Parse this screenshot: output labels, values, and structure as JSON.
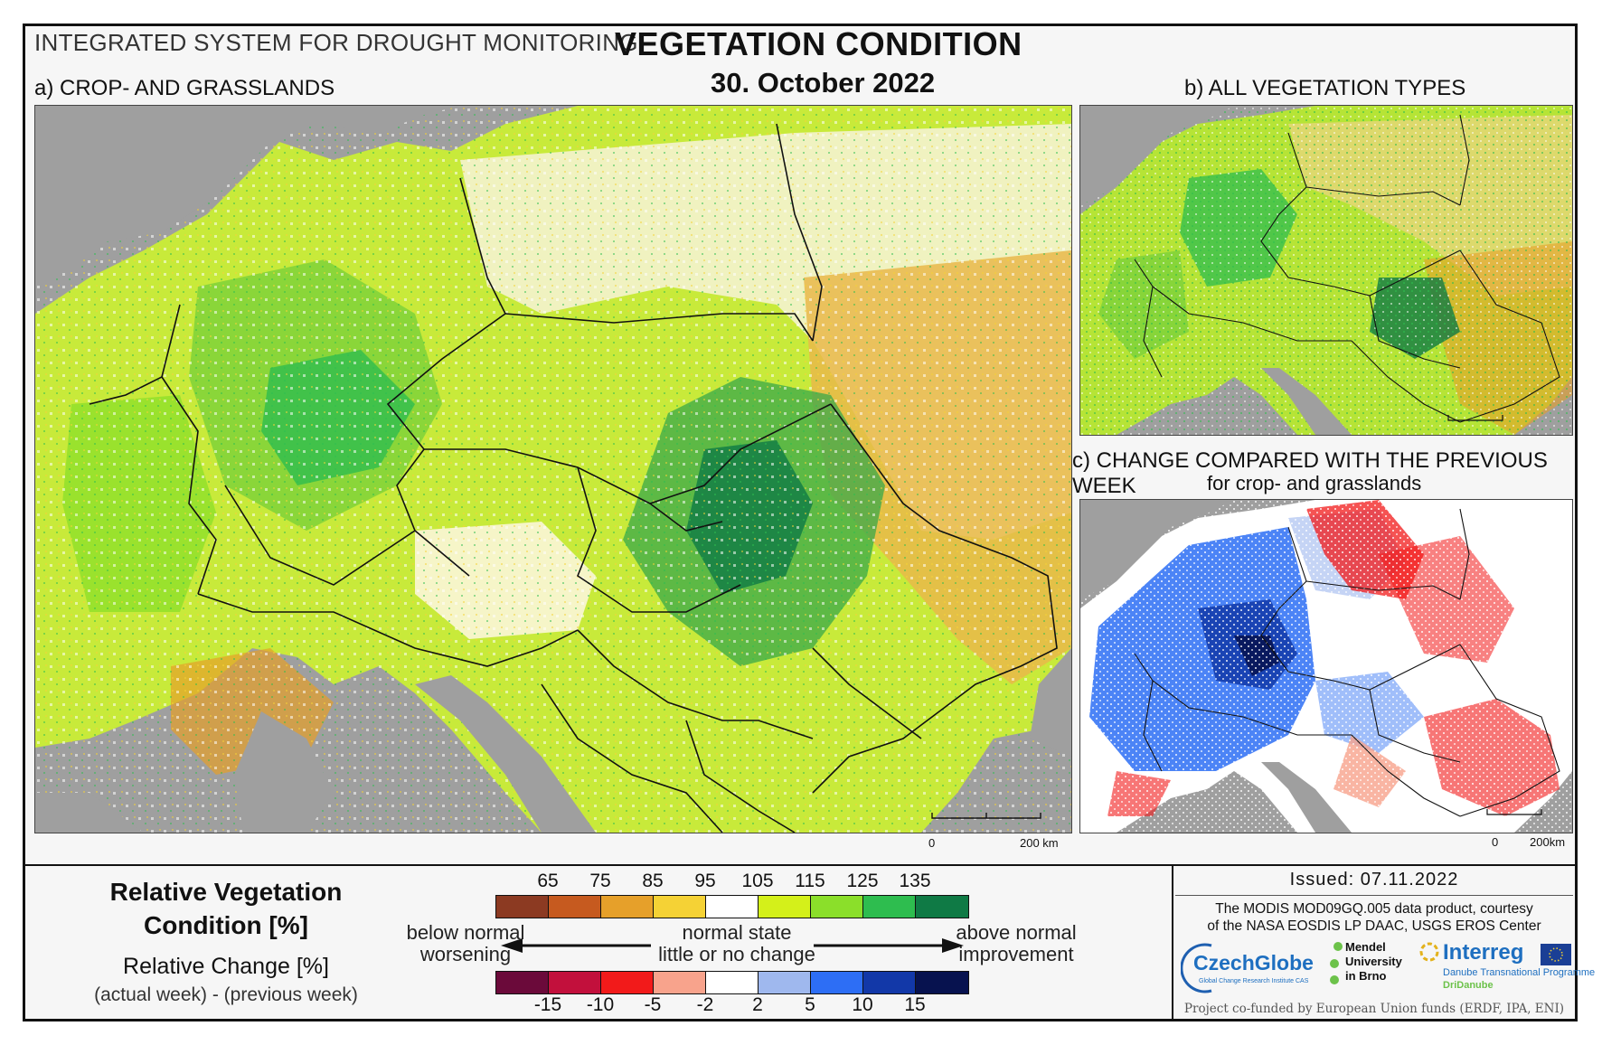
{
  "header": {
    "system_title": "INTEGRATED SYSTEM FOR DROUGHT MONITORING",
    "main_title": "VEGETATION CONDITION",
    "date": "30. October 2022"
  },
  "sections": {
    "a": "a) CROP- AND GRASSLANDS",
    "b": "b) ALL VEGETATION TYPES",
    "c": "c) CHANGE COMPARED WITH THE PREVIOUS WEEK",
    "c_sub": "for crop- and grasslands"
  },
  "scalebars": {
    "a": {
      "zero": "0",
      "end": "200 km"
    },
    "c": {
      "zero": "0",
      "end": "200km"
    }
  },
  "legend": {
    "title_line1": "Relative Vegetation",
    "title_line2": "Condition [%]",
    "change_title": "Relative Change [%]",
    "change_formula": "(actual week) - (previous week)",
    "condition_ticks": [
      "65",
      "75",
      "85",
      "95",
      "105",
      "115",
      "125",
      "135"
    ],
    "condition_colors": [
      "#8c3a22",
      "#c65a1f",
      "#e6a02a",
      "#f5d235",
      "#ffffff",
      "#d4f01a",
      "#8bdf2a",
      "#2ebd4f",
      "#0f7a45"
    ],
    "change_ticks": [
      "-15",
      "-10",
      "-5",
      "-2",
      "2",
      "5",
      "10",
      "15"
    ],
    "change_colors": [
      "#6b0a3a",
      "#c2103c",
      "#f21a1a",
      "#f8a38c",
      "#ffffff",
      "#9fb8ee",
      "#2d6ef5",
      "#1238a8",
      "#07124f"
    ],
    "below_normal": "below normal",
    "worsening": "worsening",
    "normal_state": "normal state",
    "little_change": "little or no change",
    "above_normal": "above normal",
    "improvement": "improvement"
  },
  "footer": {
    "issued": "Issued: 07.11.2022",
    "credit_line1": "The MODIS MOD09GQ.005 data product, courtesy",
    "credit_line2": "of the NASA EOSDIS LP DAAC, USGS EROS Center",
    "czechglobe": "CzechGlobe",
    "czechglobe_sub": "Global Change Research Institute CAS",
    "mendel_1": "Mendel",
    "mendel_2": "University",
    "mendel_3": "in Brno",
    "interreg": "Interreg",
    "interreg_sub1": "Danube Transnational Programme",
    "interreg_sub2": "DriDanube",
    "cofunded": "Project co-funded by European Union funds (ERDF, IPA, ENI)"
  }
}
